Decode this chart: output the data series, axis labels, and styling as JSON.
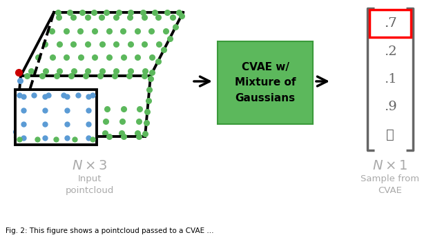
{
  "bg_color": "#ffffff",
  "green_dot_color": "#5cb85c",
  "blue_dot_color": "#5b9bd5",
  "red_dot_color": "#cc0000",
  "box_color": "black",
  "cvae_box_color": "#5cb85c",
  "cvae_text": "CVAE w/\nMixture of\nGaussians",
  "matrix_values": [
    ".7",
    ".2",
    ".1",
    ".9",
    "⋮"
  ],
  "bracket_color": "#666666",
  "label_color": "#aaaaaa",
  "caption": "Fig. 2: This figure shows a pointcloud passed to a CVAE ..."
}
